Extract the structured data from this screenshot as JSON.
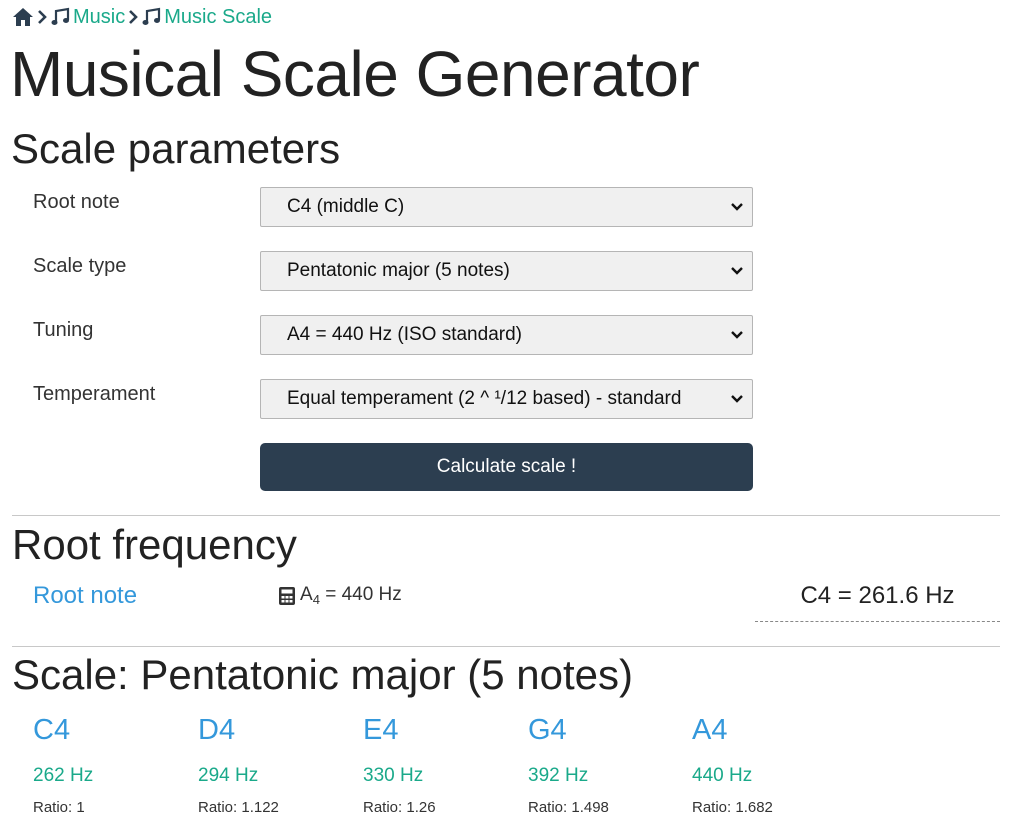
{
  "breadcrumb": {
    "home_icon": "home-icon",
    "items": [
      {
        "label": "Music",
        "icon": "music-note-icon"
      },
      {
        "label": "Music Scale",
        "icon": "music-note-icon"
      }
    ]
  },
  "page": {
    "title": "Musical Scale Generator"
  },
  "params": {
    "heading": "Scale parameters",
    "fields": [
      {
        "label": "Root note",
        "value": "C4 (middle C)"
      },
      {
        "label": "Scale type",
        "value": "Pentatonic major (5 notes)"
      },
      {
        "label": "Tuning",
        "value": "A4 = 440 Hz (ISO standard)"
      },
      {
        "label": "Temperament",
        "value": "Equal temperament (2 ^ ¹/12 based) - standard"
      }
    ],
    "calculate_label": "Calculate scale !"
  },
  "root": {
    "heading": "Root frequency",
    "link_label": "Root note",
    "calc_icon": "calculator-icon",
    "calc_note": "A",
    "calc_sub": "4",
    "calc_rest": " = 440 Hz",
    "result": "C4 = 261.6 Hz"
  },
  "scale": {
    "heading": "Scale: Pentatonic major (5 notes)",
    "notes": [
      {
        "name": "C4",
        "freq": "262 Hz",
        "ratio": "Ratio: 1"
      },
      {
        "name": "D4",
        "freq": "294 Hz",
        "ratio": "Ratio: 1.122"
      },
      {
        "name": "E4",
        "freq": "330 Hz",
        "ratio": "Ratio: 1.26"
      },
      {
        "name": "G4",
        "freq": "392 Hz",
        "ratio": "Ratio: 1.498"
      },
      {
        "name": "A4",
        "freq": "440 Hz",
        "ratio": "Ratio: 1.682"
      }
    ]
  },
  "colors": {
    "link": "#1aa98a",
    "accent": "#3498db",
    "button": "#2c3e50"
  }
}
